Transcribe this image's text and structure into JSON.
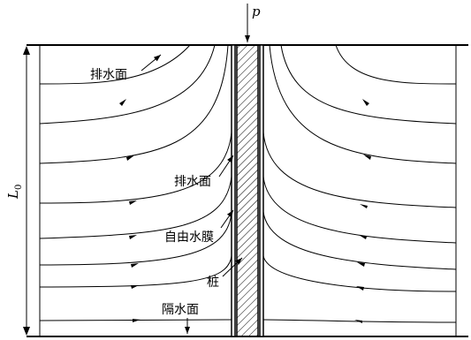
{
  "labels": {
    "load": "p",
    "length": "L",
    "length_sub": "0",
    "drain_top": "排水面",
    "drain_side": "排水面",
    "water_film": "自由水膜",
    "pile": "桩",
    "impermeable": "隔水面"
  }
}
